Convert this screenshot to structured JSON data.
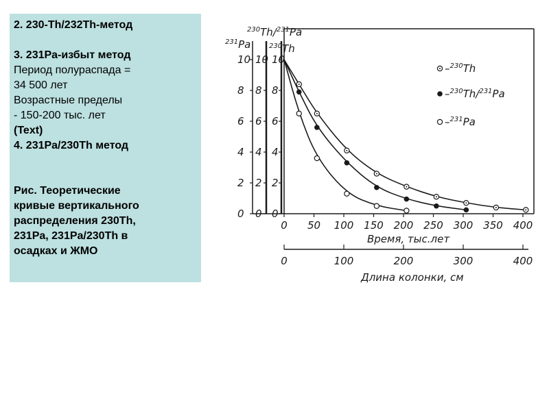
{
  "panel": {
    "line1": "2. 230-Th/232Th-метод",
    "line2": "3. 231Pa-избыт метод",
    "line3": "Период полураспада =",
    "line4": "34 500 лет",
    "line5": "Возрастные пределы",
    "line6": "- 150-200 тыс. лет",
    "line7": "(Text)",
    "line8": "4. 231Pa/230Th метод",
    "caption": [
      "Рис. Теоретические",
      "кривые вертикального",
      "распределения 230Th,",
      "231Pa, 231Pa/230Th в",
      "осадках и ЖМО"
    ]
  },
  "chart_data": {
    "type": "line",
    "xlabel": "Время, тыс.лет",
    "xlabel2": "Длина колонки, см",
    "xticks": [
      0,
      50,
      100,
      150,
      200,
      250,
      300,
      350,
      400
    ],
    "xticks2": [
      0,
      100,
      200,
      300,
      400
    ],
    "xlim": [
      0,
      400
    ],
    "ylim": [
      0,
      10
    ],
    "yticks": [
      0,
      2,
      4,
      6,
      8,
      10
    ],
    "yaxis_labels": [
      {
        "sup": "231",
        "text": "Pa"
      },
      {
        "sup1": "230",
        "text1": "Th/",
        "sup2": "231",
        "text2": "Pa"
      },
      {
        "sup": "230",
        "text": "Th"
      }
    ],
    "series": [
      {
        "name": "–230Th",
        "marker": "dotted-circle",
        "x": [
          0,
          25,
          55,
          105,
          155,
          205,
          255,
          305,
          355,
          405
        ],
        "y": [
          10,
          8.4,
          6.5,
          4.1,
          2.6,
          1.75,
          1.1,
          0.7,
          0.4,
          0.25
        ]
      },
      {
        "name": "–230Th/231Pa",
        "marker": "filled-circle",
        "x": [
          0,
          25,
          55,
          105,
          155,
          205,
          255,
          305
        ],
        "y": [
          10,
          7.9,
          5.6,
          3.3,
          1.7,
          0.95,
          0.5,
          0.25
        ]
      },
      {
        "name": "–231Pa",
        "marker": "open-circle",
        "x": [
          0,
          25,
          55,
          105,
          155,
          205
        ],
        "y": [
          10,
          6.5,
          3.6,
          1.3,
          0.5,
          0.2
        ]
      }
    ],
    "legend": [
      {
        "symbol": "dotted-circle",
        "prefix": "–",
        "sup": "230",
        "text": "Th"
      },
      {
        "symbol": "filled-circle",
        "prefix": "–",
        "sup1": "230",
        "text1": "Th/",
        "sup2": "231",
        "text2": "Pa"
      },
      {
        "symbol": "open-circle",
        "prefix": "–",
        "sup": "231",
        "text": "Pa"
      }
    ],
    "legend_position": "top-right",
    "grid": false
  }
}
